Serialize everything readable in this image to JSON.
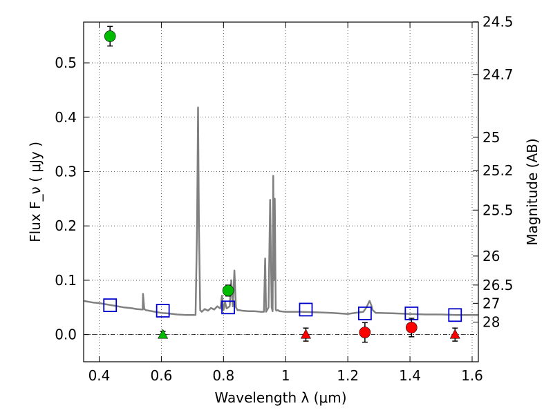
{
  "chart_data": {
    "type": "scatter",
    "title": "",
    "xlabel": "Wavelength  λ (μm)",
    "ylabel": "Flux  F_ν  ( μJy )",
    "ylabel_right": "Magnitude (AB)",
    "xlim": [
      0.35,
      1.62
    ],
    "ylim": [
      -0.05,
      0.575
    ],
    "grid": true,
    "zero_line": true,
    "xticks": [
      {
        "value": 0.4,
        "label": "0.4"
      },
      {
        "value": 0.6,
        "label": "0.6"
      },
      {
        "value": 0.8,
        "label": "0.8"
      },
      {
        "value": 1.0,
        "label": "1"
      },
      {
        "value": 1.2,
        "label": "1.2"
      },
      {
        "value": 1.4,
        "label": "1.4"
      },
      {
        "value": 1.6,
        "label": "1.6"
      }
    ],
    "yticks": [
      {
        "value": 0.0,
        "label": "0.0"
      },
      {
        "value": 0.1,
        "label": "0.1"
      },
      {
        "value": 0.2,
        "label": "0.2"
      },
      {
        "value": 0.3,
        "label": "0.3"
      },
      {
        "value": 0.4,
        "label": "0.4"
      },
      {
        "value": 0.5,
        "label": "0.5"
      }
    ],
    "mag_ticks": [
      {
        "mag": 24.5,
        "label": "24.5"
      },
      {
        "mag": 24.7,
        "label": "24.7"
      },
      {
        "mag": 25.0,
        "label": "25"
      },
      {
        "mag": 25.2,
        "label": "25.2"
      },
      {
        "mag": 25.5,
        "label": "25.5"
      },
      {
        "mag": 26.0,
        "label": "26"
      },
      {
        "mag": 26.5,
        "label": "26.5"
      },
      {
        "mag": 27.0,
        "label": "27"
      },
      {
        "mag": 28.0,
        "label": "28"
      }
    ],
    "series": [
      {
        "kind": "line",
        "color": "#808080",
        "x": [
          0.35,
          0.36,
          0.38,
          0.4,
          0.42,
          0.45,
          0.48,
          0.5,
          0.52,
          0.54,
          0.541,
          0.545,
          0.55,
          0.56,
          0.58,
          0.6,
          0.62,
          0.65,
          0.68,
          0.7,
          0.71,
          0.715,
          0.718,
          0.721,
          0.725,
          0.73,
          0.74,
          0.75,
          0.76,
          0.77,
          0.78,
          0.79,
          0.795,
          0.8,
          0.805,
          0.81,
          0.82,
          0.825,
          0.83,
          0.835,
          0.84,
          0.845,
          0.85,
          0.86,
          0.88,
          0.9,
          0.92,
          0.93,
          0.934,
          0.937,
          0.94,
          0.945,
          0.95,
          0.955,
          0.958,
          0.96,
          0.962,
          0.965,
          0.968,
          0.97,
          0.975,
          0.98,
          1.0,
          1.05,
          1.1,
          1.15,
          1.2,
          1.25,
          1.26,
          1.27,
          1.275,
          1.28,
          1.29,
          1.3,
          1.35,
          1.4,
          1.45,
          1.5,
          1.55,
          1.62
        ],
        "y": [
          0.062,
          0.061,
          0.059,
          0.058,
          0.056,
          0.053,
          0.05,
          0.049,
          0.047,
          0.046,
          0.075,
          0.047,
          0.045,
          0.044,
          0.042,
          0.04,
          0.039,
          0.037,
          0.036,
          0.036,
          0.036,
          0.2,
          0.418,
          0.2,
          0.045,
          0.042,
          0.047,
          0.044,
          0.049,
          0.046,
          0.052,
          0.048,
          0.072,
          0.045,
          0.06,
          0.048,
          0.052,
          0.1,
          0.052,
          0.118,
          0.05,
          0.045,
          0.045,
          0.044,
          0.043,
          0.043,
          0.042,
          0.042,
          0.14,
          0.042,
          0.045,
          0.05,
          0.248,
          0.05,
          0.043,
          0.292,
          0.1,
          0.25,
          0.046,
          0.044,
          0.045,
          0.043,
          0.042,
          0.042,
          0.041,
          0.04,
          0.038,
          0.042,
          0.05,
          0.062,
          0.055,
          0.045,
          0.04,
          0.04,
          0.039,
          0.038,
          0.037,
          0.037,
          0.036,
          0.036
        ]
      },
      {
        "kind": "points",
        "marker": "square-open",
        "color": "#0000cc",
        "x": [
          0.435,
          0.605,
          0.815,
          1.065,
          1.255,
          1.405,
          1.545
        ],
        "y": [
          0.054,
          0.044,
          0.05,
          0.046,
          0.039,
          0.039,
          0.036
        ]
      },
      {
        "kind": "points",
        "marker": "circle",
        "color": "#00bb00",
        "x": [
          0.435,
          0.815
        ],
        "y": [
          0.549,
          0.081
        ],
        "err": [
          0.018,
          0.01
        ]
      },
      {
        "kind": "points",
        "marker": "triangle",
        "color": "#00bb00",
        "x": [
          0.605
        ],
        "y": [
          0.0
        ],
        "err": [
          0.006
        ]
      },
      {
        "kind": "points",
        "marker": "circle",
        "color": "#ff0000",
        "x": [
          1.255,
          1.405
        ],
        "y": [
          0.004,
          0.013
        ],
        "err": [
          0.018,
          0.017
        ]
      },
      {
        "kind": "points",
        "marker": "triangle",
        "color": "#ff0000",
        "x": [
          1.065,
          1.545
        ],
        "y": [
          0.0,
          0.0
        ],
        "err": [
          0.012,
          0.012
        ]
      }
    ]
  }
}
